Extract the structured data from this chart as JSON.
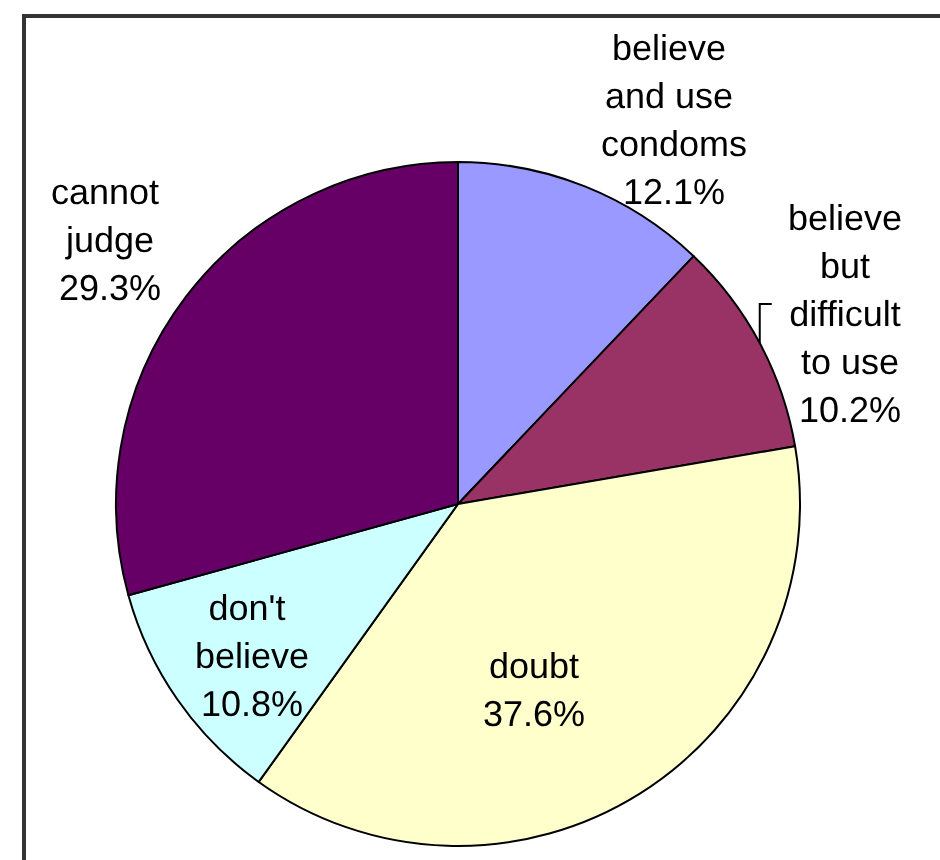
{
  "chart_data": {
    "type": "pie",
    "categories": [
      "believe and use condoms",
      "believe but difficult to use",
      "doubt",
      "don't believe",
      "cannot judge"
    ],
    "values": [
      12.1,
      10.2,
      37.6,
      10.8,
      29.3
    ],
    "colors": [
      "#9999ff",
      "#993366",
      "#ffffcc",
      "#ccffff",
      "#660066"
    ],
    "value_labels": [
      "12.1%",
      "10.2%",
      "37.6%",
      "10.8%",
      "29.3%"
    ]
  }
}
